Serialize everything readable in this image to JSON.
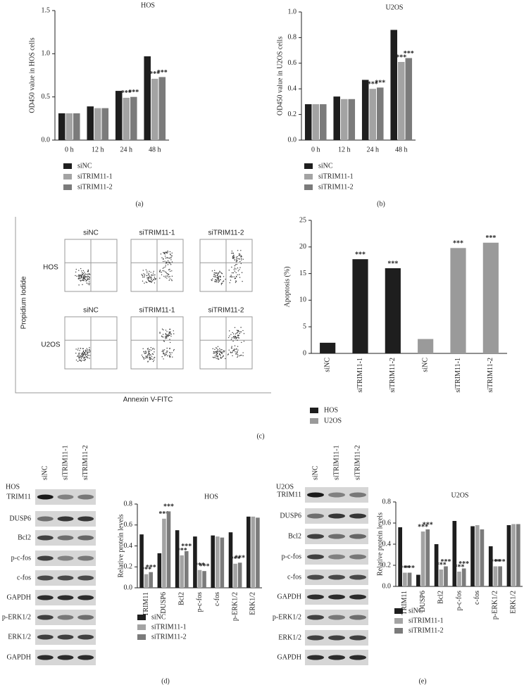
{
  "chart_data": [
    {
      "type": "bar",
      "title": "HOS",
      "caption": "(a)",
      "y_label": "OD450 value in HOS cells",
      "categories": [
        "0 h",
        "12 h",
        "24 h",
        "48 h"
      ],
      "series": [
        {
          "name": "siNC",
          "color": "#1e1e1e",
          "values": [
            0.31,
            0.39,
            0.57,
            0.97
          ],
          "annotations": [
            null,
            null,
            null,
            null
          ]
        },
        {
          "name": "siTRIM11-1",
          "color": "#a3a3a3",
          "values": [
            0.31,
            0.37,
            0.49,
            0.71
          ],
          "annotations": [
            null,
            null,
            "***",
            "***"
          ]
        },
        {
          "name": "siTRIM11-2",
          "color": "#7b7b7b",
          "values": [
            0.31,
            0.37,
            0.5,
            0.73
          ],
          "annotations": [
            null,
            null,
            "***",
            "***"
          ]
        }
      ],
      "ylim": [
        0,
        1.5
      ],
      "yticks": [
        {
          "value": 0,
          "label": "0.0"
        },
        {
          "value": 0.5,
          "label": "0.5"
        },
        {
          "value": 1,
          "label": "1.0"
        },
        {
          "value": 1.5,
          "label": "1.5"
        }
      ],
      "legend": "bottom-left",
      "grid": false
    },
    {
      "type": "bar",
      "title": "U2OS",
      "caption": "(b)",
      "y_label": "OD450 value in U2OS cells",
      "categories": [
        "0 h",
        "12 h",
        "24 h",
        "48 h"
      ],
      "series": [
        {
          "name": "siNC",
          "color": "#1e1e1e",
          "values": [
            0.28,
            0.34,
            0.47,
            0.86
          ],
          "annotations": [
            null,
            null,
            null,
            null
          ]
        },
        {
          "name": "siTRIM11-1",
          "color": "#a3a3a3",
          "values": [
            0.28,
            0.32,
            0.4,
            0.61
          ],
          "annotations": [
            null,
            null,
            "***",
            "***"
          ]
        },
        {
          "name": "siTRIM11-2",
          "color": "#7b7b7b",
          "values": [
            0.28,
            0.32,
            0.41,
            0.64
          ],
          "annotations": [
            null,
            null,
            "***",
            "***"
          ]
        }
      ],
      "ylim": [
        0,
        1
      ],
      "yticks": [
        {
          "value": 0,
          "label": "0.0"
        },
        0.2,
        0.4,
        0.6,
        0.8,
        {
          "value": 1,
          "label": "1.0"
        }
      ],
      "legend": "bottom-left",
      "grid": false
    },
    {
      "type": "bar",
      "caption": "(c)",
      "y_label": "Apoptosis (%)",
      "categories": [
        "siNC",
        "siTRIM11-1",
        "siTRIM11-2",
        "siNC",
        "siTRIM11-1",
        "siTRIM11-2"
      ],
      "series": [
        {
          "name": "HOS",
          "color": "#1e1e1e",
          "values": [
            2.0,
            17.7,
            16.0,
            null,
            null,
            null
          ],
          "annotations": [
            null,
            "***",
            "***",
            null,
            null,
            null
          ]
        },
        {
          "name": "U2OS",
          "color": "#9a9a9a",
          "values": [
            null,
            null,
            null,
            2.7,
            19.8,
            20.8
          ],
          "annotations": [
            null,
            null,
            null,
            null,
            "***",
            "***"
          ]
        }
      ],
      "ylim": [
        0,
        25
      ],
      "yticks": [
        0,
        5,
        10,
        15,
        20,
        25
      ],
      "legend": "bottom-left",
      "grid": false
    },
    {
      "type": "bar",
      "title": "HOS",
      "caption": "(d)",
      "y_label": "Relative protein levels",
      "categories": [
        "TRIM11",
        "DUSP6",
        "Bcl2",
        "p-c-fos",
        "c-fos",
        "p-ERK1/2",
        "ERK1/2"
      ],
      "series": [
        {
          "name": "siNC",
          "color": "#1e1e1e",
          "values": [
            0.51,
            0.33,
            0.55,
            0.49,
            0.5,
            0.53,
            0.68
          ],
          "annotations": [
            null,
            null,
            null,
            null,
            null,
            null,
            null
          ]
        },
        {
          "name": "siTRIM11-1",
          "color": "#a3a3a3",
          "values": [
            0.13,
            0.66,
            0.31,
            0.17,
            0.49,
            0.23,
            0.68
          ],
          "annotations": [
            "***",
            "***",
            "***",
            "***",
            null,
            "***",
            null
          ]
        },
        {
          "name": "siTRIM11-2",
          "color": "#7b7b7b",
          "values": [
            0.15,
            0.73,
            0.35,
            0.16,
            0.48,
            0.24,
            0.67
          ],
          "annotations": [
            "***",
            "***",
            "***",
            "***",
            null,
            "***",
            null
          ]
        }
      ],
      "ylim": [
        0,
        0.8
      ],
      "yticks": [
        {
          "value": 0,
          "label": "0.0"
        },
        0.2,
        0.4,
        0.6,
        0.8
      ],
      "legend": "bottom-left",
      "grid": false
    },
    {
      "type": "bar",
      "title": "U2OS",
      "caption": "(e)",
      "y_label": "Relative protein levels",
      "categories": [
        "TRIM11",
        "DUSP6",
        "Bcl2",
        "p-c-fos",
        "c-fos",
        "p-ERK1/2",
        "ERK1/2"
      ],
      "series": [
        {
          "name": "siNC",
          "color": "#1e1e1e",
          "values": [
            0.56,
            0.11,
            0.4,
            0.62,
            0.57,
            0.38,
            0.58
          ],
          "annotations": [
            null,
            null,
            null,
            null,
            null,
            null,
            null
          ]
        },
        {
          "name": "siTRIM11-1",
          "color": "#a3a3a3",
          "values": [
            0.13,
            0.52,
            0.16,
            0.14,
            0.58,
            0.19,
            0.59
          ],
          "annotations": [
            "***",
            "***",
            "***",
            "***",
            null,
            "***",
            null
          ]
        },
        {
          "name": "siTRIM11-2",
          "color": "#7b7b7b",
          "values": [
            0.13,
            0.54,
            0.19,
            0.17,
            0.54,
            0.19,
            0.59
          ],
          "annotations": [
            "***",
            "***",
            "***",
            "***",
            null,
            "***",
            null
          ]
        }
      ],
      "ylim": [
        0,
        0.8
      ],
      "yticks": [
        {
          "value": 0,
          "label": "0.0"
        },
        0.2,
        0.4,
        0.6,
        0.8
      ],
      "legend": "bottom-left",
      "grid": false
    }
  ],
  "flow_cytometry": {
    "y_axis": "Propidium Iodide",
    "x_axis": "Annexin V-FITC",
    "rows": [
      {
        "label": "HOS",
        "columns": [
          "siNC",
          "siTRIM11-1",
          "siTRIM11-2"
        ]
      },
      {
        "label": "U2OS",
        "columns": [
          "siNC",
          "siTRIM11-1",
          "siTRIM11-2"
        ]
      }
    ]
  },
  "western_blots": [
    {
      "cell_line": "HOS",
      "lanes": [
        "siNC",
        "siTRIM11-1",
        "siTRIM11-2"
      ],
      "rows": [
        "TRIM11",
        "DUSP6",
        "Bcl2",
        "p-c-fos",
        "c-fos",
        "GAPDH",
        "p-ERK1/2",
        "ERK1/2",
        "GAPDH"
      ]
    },
    {
      "cell_line": "U2OS",
      "lanes": [
        "siNC",
        "siTRIM11-1",
        "siTRIM11-2"
      ],
      "rows": [
        "TRIM11",
        "DUSP6",
        "Bcl2",
        "p-c-fos",
        "c-fos",
        "GAPDH",
        "p-ERK1/2",
        "ERK1/2",
        "GAPDH"
      ]
    }
  ]
}
